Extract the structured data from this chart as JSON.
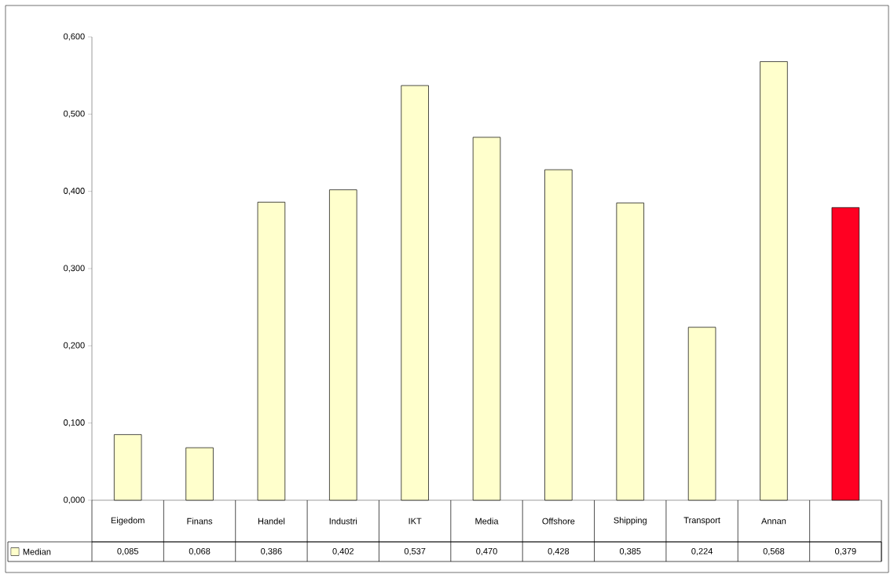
{
  "chart_data": {
    "type": "bar",
    "categories": [
      "Eigedom",
      "Finans",
      "Handel",
      "Industri",
      "IKT",
      "Media",
      "Offshore",
      "Shipping",
      "Transport",
      "Annan",
      null
    ],
    "series": [
      {
        "name": "Median",
        "color": "#ffffcc",
        "colors": [
          "#ffffcc",
          "#ffffcc",
          "#ffffcc",
          "#ffffcc",
          "#ffffcc",
          "#ffffcc",
          "#ffffcc",
          "#ffffcc",
          "#ffffcc",
          "#ffffcc",
          "#ff0022"
        ],
        "values": [
          0.085,
          0.068,
          0.386,
          0.402,
          0.537,
          0.47,
          0.428,
          0.385,
          0.224,
          0.568,
          0.379
        ],
        "value_labels": [
          "0,085",
          "0,068",
          "0,386",
          "0,402",
          "0,537",
          "0,470",
          "0,428",
          "0,385",
          "0,224",
          "0,568",
          "0,379"
        ]
      }
    ],
    "ylim": [
      0,
      0.6
    ],
    "yticks": [
      {
        "value": 0,
        "label": "0,000"
      },
      {
        "value": 0.1,
        "label": "0,100"
      },
      {
        "value": 0.2,
        "label": "0,200"
      },
      {
        "value": 0.3,
        "label": "0,300"
      },
      {
        "value": 0.4,
        "label": "0,400"
      },
      {
        "value": 0.5,
        "label": "0,500"
      },
      {
        "value": 0.6,
        "label": "0,600"
      }
    ],
    "grid": false,
    "legend": "bottom left"
  }
}
